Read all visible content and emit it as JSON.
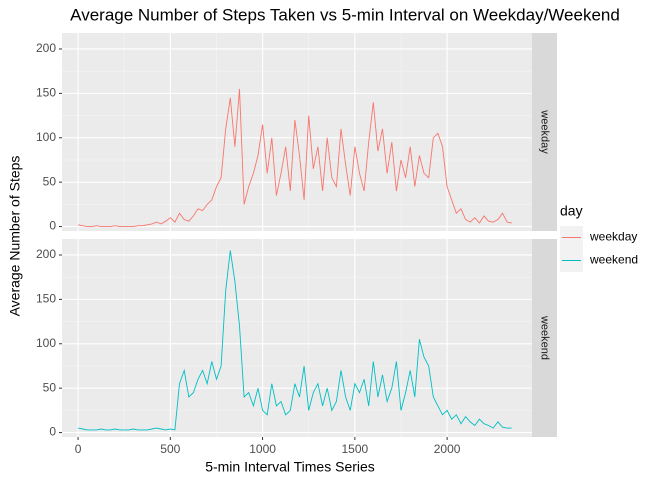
{
  "chart_data": {
    "type": "line",
    "facet": true,
    "title": "Average Number of Steps Taken vs 5-min Interval on Weekday/Weekend",
    "xlabel": "5-min Interval Times Series",
    "ylabel": "Average Number of Steps",
    "legend_title": "day",
    "xlim": [
      -87,
      2460
    ],
    "xticks": [
      0,
      500,
      1000,
      1500,
      2000
    ],
    "ylim": [
      -5,
      218
    ],
    "yticks": [
      0,
      50,
      100,
      150,
      200
    ],
    "grid": true,
    "x": [
      0,
      25,
      50,
      75,
      100,
      125,
      150,
      175,
      200,
      225,
      250,
      275,
      300,
      325,
      350,
      375,
      400,
      425,
      450,
      475,
      500,
      525,
      550,
      575,
      600,
      625,
      650,
      675,
      700,
      725,
      750,
      775,
      800,
      825,
      850,
      875,
      900,
      925,
      950,
      975,
      1000,
      1025,
      1050,
      1075,
      1100,
      1125,
      1150,
      1175,
      1200,
      1225,
      1250,
      1275,
      1300,
      1325,
      1350,
      1375,
      1400,
      1425,
      1450,
      1475,
      1500,
      1525,
      1550,
      1575,
      1600,
      1625,
      1650,
      1675,
      1700,
      1725,
      1750,
      1775,
      1800,
      1825,
      1850,
      1875,
      1900,
      1925,
      1950,
      1975,
      2000,
      2025,
      2050,
      2075,
      2100,
      2125,
      2150,
      2175,
      2200,
      2225,
      2250,
      2275,
      2300,
      2325,
      2350
    ],
    "series": [
      {
        "name": "weekday",
        "color": "#F8766D",
        "values": [
          2,
          1,
          0,
          0,
          1,
          0,
          0,
          0,
          1,
          0,
          0,
          0,
          0,
          1,
          1,
          2,
          3,
          5,
          3,
          6,
          10,
          5,
          15,
          8,
          6,
          12,
          20,
          18,
          25,
          30,
          45,
          55,
          110,
          145,
          90,
          155,
          25,
          45,
          60,
          80,
          115,
          60,
          100,
          35,
          60,
          90,
          40,
          120,
          80,
          30,
          125,
          65,
          90,
          40,
          100,
          55,
          45,
          110,
          70,
          35,
          90,
          60,
          40,
          95,
          140,
          85,
          110,
          60,
          95,
          40,
          75,
          55,
          90,
          45,
          80,
          60,
          55,
          100,
          105,
          90,
          45,
          30,
          15,
          20,
          8,
          5,
          10,
          4,
          12,
          6,
          5,
          8,
          15,
          5,
          4
        ]
      },
      {
        "name": "weekend",
        "color": "#00BFC4",
        "values": [
          5,
          4,
          3,
          3,
          3,
          4,
          3,
          3,
          4,
          3,
          3,
          3,
          4,
          3,
          3,
          3,
          4,
          5,
          4,
          3,
          4,
          3,
          55,
          70,
          40,
          45,
          60,
          70,
          55,
          80,
          60,
          75,
          160,
          205,
          170,
          120,
          40,
          45,
          30,
          50,
          25,
          20,
          55,
          30,
          35,
          20,
          25,
          55,
          40,
          75,
          25,
          45,
          55,
          30,
          50,
          25,
          35,
          70,
          40,
          25,
          55,
          45,
          60,
          30,
          80,
          40,
          65,
          35,
          50,
          80,
          25,
          45,
          70,
          40,
          105,
          85,
          75,
          40,
          30,
          20,
          25,
          15,
          20,
          10,
          18,
          12,
          8,
          15,
          10,
          8,
          5,
          12,
          6,
          5,
          5
        ]
      }
    ]
  }
}
